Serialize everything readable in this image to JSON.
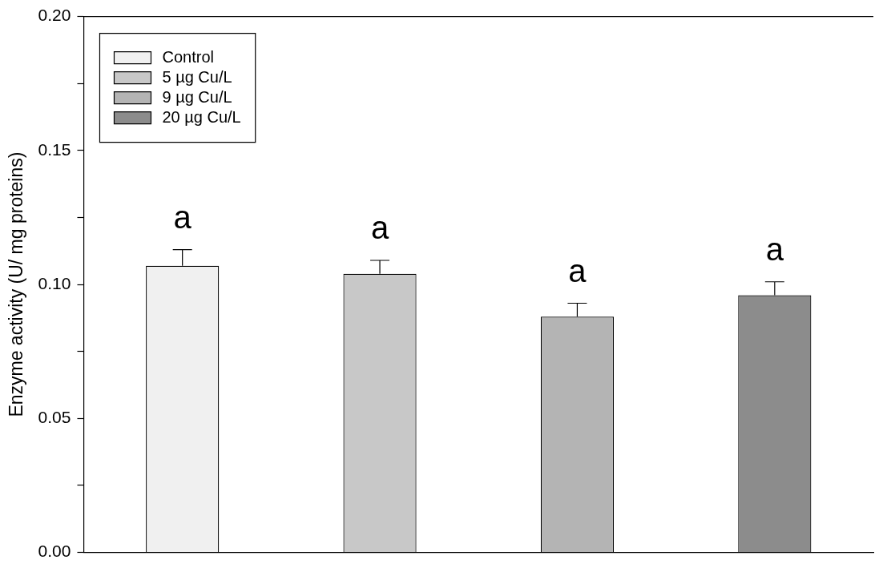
{
  "chart_data": {
    "type": "bar",
    "ylabel": "Enzyme activity (U/ mg proteins)",
    "categories": [
      null,
      null,
      null,
      null
    ],
    "series": [
      {
        "name": "Control",
        "color": "#f0f0f0",
        "values": [
          0.107,
          null,
          null,
          null
        ],
        "errors": [
          [
            0.107,
            0.113
          ],
          null,
          null,
          null
        ]
      },
      {
        "name": "5 µg Cu/L",
        "color": "#c8c8c8",
        "values": [
          null,
          0.104,
          null,
          null
        ],
        "errors": [
          null,
          [
            0.104,
            0.109
          ],
          null,
          null
        ]
      },
      {
        "name": "9 µg Cu/L",
        "color": "#b4b4b4",
        "values": [
          null,
          null,
          0.088,
          null
        ],
        "errors": [
          null,
          null,
          [
            0.088,
            0.093
          ],
          null
        ]
      },
      {
        "name": "20 µg Cu/L",
        "color": "#8c8c8c",
        "values": [
          null,
          null,
          null,
          0.096
        ],
        "errors": [
          null,
          null,
          null,
          [
            0.096,
            0.101
          ]
        ]
      }
    ],
    "ylim": [
      0,
      0.2
    ],
    "yticks": [
      {
        "value": 0,
        "label": "0.00"
      },
      {
        "value": 0.025,
        "label": null
      },
      {
        "value": 0.05,
        "label": "0.05"
      },
      {
        "value": 0.075,
        "label": null
      },
      {
        "value": 0.1,
        "label": "0.10"
      },
      {
        "value": 0.125,
        "label": null
      },
      {
        "value": 0.15,
        "label": "0.15"
      },
      {
        "value": 0.175,
        "label": null
      },
      {
        "value": 0.2,
        "label": "0.20"
      }
    ],
    "annotations": [
      "a",
      "a",
      "a",
      "a"
    ],
    "grid": false,
    "legend": "top left"
  }
}
